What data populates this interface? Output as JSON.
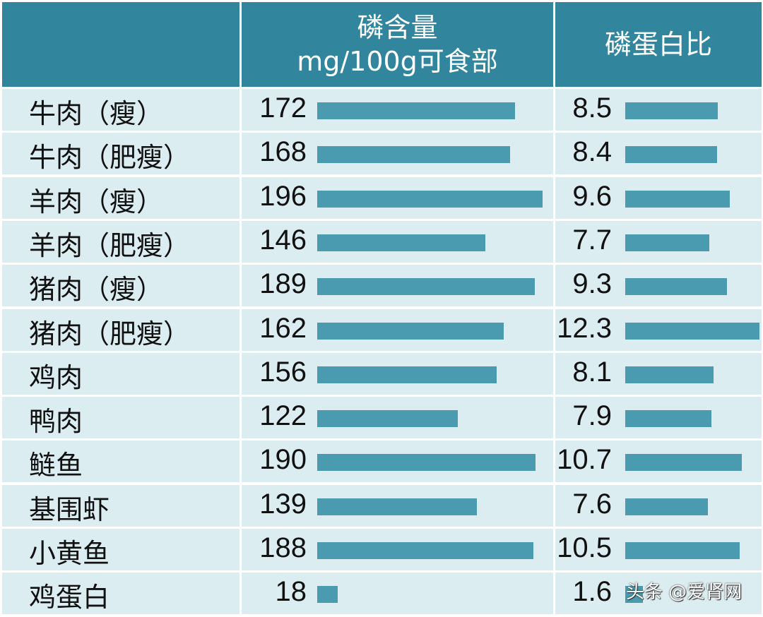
{
  "chart_data": {
    "type": "table",
    "title": "",
    "columns": [
      "",
      "磷含量 mg/100g可食部",
      "磷蛋白比"
    ],
    "categories": [
      "牛肉（瘦）",
      "牛肉（肥瘦）",
      "羊肉（瘦）",
      "羊肉（肥瘦）",
      "猪肉（瘦）",
      "猪肉（肥瘦）",
      "鸡肉",
      "鸭肉",
      "鲢鱼",
      "基围虾",
      "小黄鱼",
      "鸡蛋白"
    ],
    "series": [
      {
        "name": "磷含量 mg/100g可食部",
        "values": [
          172,
          168,
          196,
          146,
          189,
          162,
          156,
          122,
          190,
          139,
          188,
          18
        ]
      },
      {
        "name": "磷蛋白比",
        "values": [
          8.5,
          8.4,
          9.6,
          7.7,
          9.3,
          12.3,
          8.1,
          7.9,
          10.7,
          7.6,
          10.5,
          1.6
        ]
      }
    ],
    "bar_color": "#4a9bb0",
    "header_color": "#31859c",
    "row_color": "#dcedf2"
  },
  "header": {
    "col0": "",
    "col1_line1": "磷含量",
    "col1_line2": "mg/100g可食部",
    "col2": "磷蛋白比"
  },
  "rows": [
    {
      "name": "牛肉（瘦）",
      "p": "172",
      "ratio": "8.5"
    },
    {
      "name": "牛肉（肥瘦）",
      "p": "168",
      "ratio": "8.4"
    },
    {
      "name": "羊肉（瘦）",
      "p": "196",
      "ratio": "9.6"
    },
    {
      "name": "羊肉（肥瘦）",
      "p": "146",
      "ratio": "7.7"
    },
    {
      "name": "猪肉（瘦）",
      "p": "189",
      "ratio": "9.3"
    },
    {
      "name": "猪肉（肥瘦）",
      "p": "162",
      "ratio": "12.3"
    },
    {
      "name": "鸡肉",
      "p": "156",
      "ratio": "8.1"
    },
    {
      "name": "鸭肉",
      "p": "122",
      "ratio": "7.9"
    },
    {
      "name": "鲢鱼",
      "p": "190",
      "ratio": "10.7"
    },
    {
      "name": "基围虾",
      "p": "139",
      "ratio": "7.6"
    },
    {
      "name": "小黄鱼",
      "p": "188",
      "ratio": "10.5"
    },
    {
      "name": "鸡蛋白",
      "p": "18",
      "ratio": "1.6"
    }
  ],
  "watermark": "头条 @爱肾网"
}
